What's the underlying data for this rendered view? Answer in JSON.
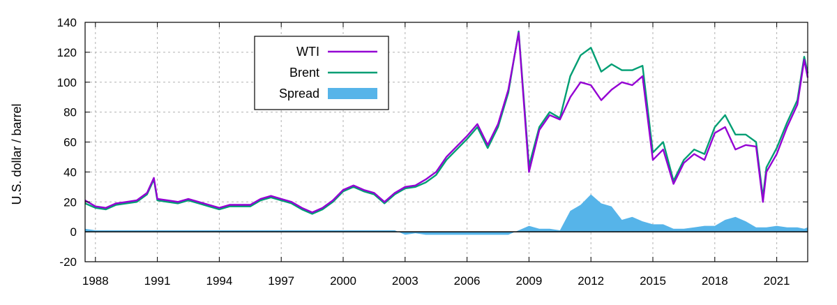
{
  "chart_data": {
    "type": "line",
    "title": "",
    "xlabel": "",
    "ylabel": "U.S. dollar / barrel",
    "xlim": [
      1987.5,
      2022.5
    ],
    "ylim": [
      -20,
      140
    ],
    "x_ticks": [
      1988,
      1991,
      1994,
      1997,
      2000,
      2003,
      2006,
      2009,
      2012,
      2015,
      2018,
      2021
    ],
    "x_tick_labels": [
      "1988",
      "1991",
      "1994",
      "1997",
      "2000",
      "2003",
      "2006",
      "2009",
      "2012",
      "2015",
      "2018",
      "2021"
    ],
    "y_ticks": [
      -20,
      0,
      20,
      40,
      60,
      80,
      100,
      120,
      140
    ],
    "y_tick_labels": [
      "-20",
      "0",
      "20",
      "40",
      "60",
      "80",
      "100",
      "120",
      "140"
    ],
    "grid": true,
    "legend_position": "top-left",
    "legend": [
      {
        "name": "WTI",
        "kind": "line",
        "color": "#9400d3"
      },
      {
        "name": "Brent",
        "kind": "line",
        "color": "#009e73"
      },
      {
        "name": "Spread",
        "kind": "area",
        "color": "#56b4e9"
      }
    ],
    "x": [
      1987.5,
      1988.0,
      1988.5,
      1989.0,
      1989.5,
      1990.0,
      1990.5,
      1990.83,
      1991.0,
      1991.5,
      1992.0,
      1992.5,
      1993.0,
      1993.5,
      1994.0,
      1994.5,
      1995.0,
      1995.5,
      1996.0,
      1996.5,
      1997.0,
      1997.5,
      1998.0,
      1998.5,
      1999.0,
      1999.5,
      2000.0,
      2000.5,
      2001.0,
      2001.5,
      2002.0,
      2002.5,
      2003.0,
      2003.5,
      2004.0,
      2004.5,
      2005.0,
      2005.5,
      2006.0,
      2006.5,
      2007.0,
      2007.5,
      2008.0,
      2008.5,
      2009.0,
      2009.5,
      2010.0,
      2010.5,
      2011.0,
      2011.5,
      2012.0,
      2012.5,
      2013.0,
      2013.5,
      2014.0,
      2014.5,
      2015.0,
      2015.5,
      2016.0,
      2016.5,
      2017.0,
      2017.5,
      2018.0,
      2018.5,
      2019.0,
      2019.5,
      2020.0,
      2020.33,
      2020.5,
      2021.0,
      2021.5,
      2022.0,
      2022.33,
      2022.5
    ],
    "series": [
      {
        "name": "WTI",
        "values": [
          21,
          17,
          16,
          19,
          20,
          21,
          26,
          36,
          22,
          21,
          20,
          22,
          20,
          18,
          16,
          18,
          18,
          18,
          22,
          24,
          22,
          20,
          16,
          13,
          16,
          21,
          28,
          31,
          28,
          26,
          20,
          26,
          30,
          31,
          35,
          40,
          50,
          57,
          64,
          72,
          58,
          72,
          95,
          133,
          40,
          68,
          78,
          75,
          90,
          100,
          98,
          88,
          95,
          100,
          98,
          104,
          48,
          55,
          32,
          46,
          52,
          48,
          66,
          70,
          55,
          58,
          57,
          20,
          40,
          52,
          70,
          85,
          115,
          103
        ]
      },
      {
        "name": "Brent",
        "values": [
          19,
          16,
          15,
          18,
          19,
          20,
          25,
          35,
          21,
          20,
          19,
          21,
          19,
          17,
          15,
          17,
          17,
          17,
          21,
          23,
          21,
          19,
          15,
          12,
          15,
          20,
          27,
          30,
          27,
          25,
          19,
          25,
          29,
          30,
          33,
          38,
          48,
          55,
          62,
          70,
          56,
          70,
          93,
          134,
          44,
          70,
          80,
          76,
          104,
          118,
          123,
          107,
          112,
          108,
          108,
          111,
          53,
          60,
          34,
          48,
          55,
          52,
          70,
          78,
          65,
          65,
          60,
          23,
          43,
          56,
          73,
          88,
          117,
          106
        ]
      },
      {
        "name": "Spread",
        "values": [
          2,
          1,
          1,
          1,
          1,
          1,
          1,
          1,
          1,
          1,
          1,
          1,
          1,
          1,
          1,
          1,
          1,
          1,
          1,
          1,
          1,
          1,
          1,
          1,
          1,
          1,
          1,
          1,
          1,
          1,
          1,
          1,
          -2,
          -1,
          -2,
          -2,
          -2,
          -2,
          -2,
          -2,
          -2,
          -2,
          -2,
          1,
          4,
          2,
          2,
          1,
          14,
          18,
          25,
          19,
          17,
          8,
          10,
          7,
          5,
          5,
          2,
          2,
          3,
          4,
          4,
          8,
          10,
          7,
          3,
          3,
          3,
          4,
          3,
          3,
          2,
          3
        ]
      }
    ]
  }
}
